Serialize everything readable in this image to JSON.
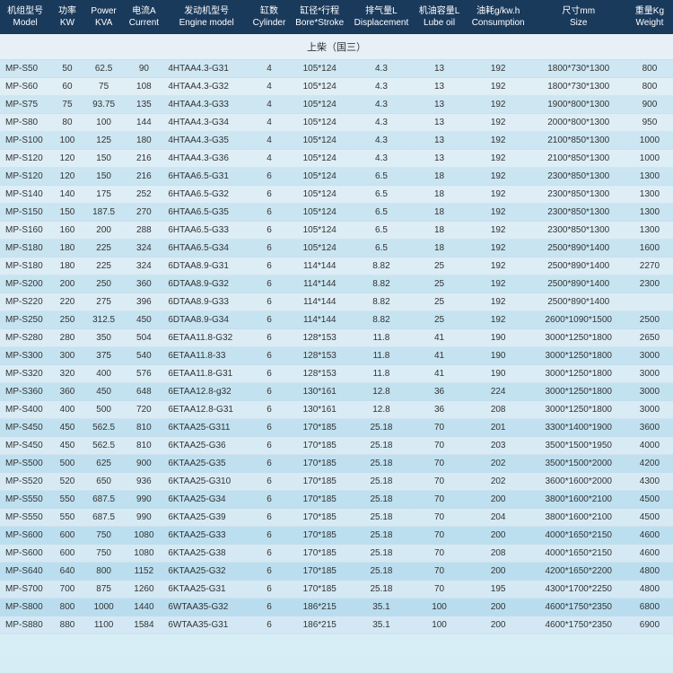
{
  "headers": [
    {
      "zh": "机组型号",
      "en": "Model"
    },
    {
      "zh": "功率",
      "en": "KW"
    },
    {
      "zh": "Power",
      "en": "KVA"
    },
    {
      "zh": "电流A",
      "en": "Current"
    },
    {
      "zh": "发动机型号",
      "en": "Engine model"
    },
    {
      "zh": "缸数",
      "en": "Cylinder"
    },
    {
      "zh": "缸径*行程",
      "en": "Bore*Stroke"
    },
    {
      "zh": "排气量L",
      "en": "Displacement"
    },
    {
      "zh": "机油容量L",
      "en": "Lube oil"
    },
    {
      "zh": "油耗g/kw.h",
      "en": "Consumption"
    },
    {
      "zh": "尺寸mm",
      "en": "Size"
    },
    {
      "zh": "重量Kg",
      "en": "Weight"
    }
  ],
  "section_title": "上柴（国三）",
  "rows": [
    [
      "MP-S50",
      "50",
      "62.5",
      "90",
      "4HTAA4.3-G31",
      "4",
      "105*124",
      "4.3",
      "13",
      "192",
      "1800*730*1300",
      "800"
    ],
    [
      "MP-S60",
      "60",
      "75",
      "108",
      "4HTAA4.3-G32",
      "4",
      "105*124",
      "4.3",
      "13",
      "192",
      "1800*730*1300",
      "800"
    ],
    [
      "MP-S75",
      "75",
      "93.75",
      "135",
      "4HTAA4.3-G33",
      "4",
      "105*124",
      "4.3",
      "13",
      "192",
      "1900*800*1300",
      "900"
    ],
    [
      "MP-S80",
      "80",
      "100",
      "144",
      "4HTAA4.3-G34",
      "4",
      "105*124",
      "4.3",
      "13",
      "192",
      "2000*800*1300",
      "950"
    ],
    [
      "MP-S100",
      "100",
      "125",
      "180",
      "4HTAA4.3-G35",
      "4",
      "105*124",
      "4.3",
      "13",
      "192",
      "2100*850*1300",
      "1000"
    ],
    [
      "MP-S120",
      "120",
      "150",
      "216",
      "4HTAA4.3-G36",
      "4",
      "105*124",
      "4.3",
      "13",
      "192",
      "2100*850*1300",
      "1000"
    ],
    [
      "MP-S120",
      "120",
      "150",
      "216",
      "6HTAA6.5-G31",
      "6",
      "105*124",
      "6.5",
      "18",
      "192",
      "2300*850*1300",
      "1300"
    ],
    [
      "MP-S140",
      "140",
      "175",
      "252",
      "6HTAA6.5-G32",
      "6",
      "105*124",
      "6.5",
      "18",
      "192",
      "2300*850*1300",
      "1300"
    ],
    [
      "MP-S150",
      "150",
      "187.5",
      "270",
      "6HTAA6.5-G35",
      "6",
      "105*124",
      "6.5",
      "18",
      "192",
      "2300*850*1300",
      "1300"
    ],
    [
      "MP-S160",
      "160",
      "200",
      "288",
      "6HTAA6.5-G33",
      "6",
      "105*124",
      "6.5",
      "18",
      "192",
      "2300*850*1300",
      "1300"
    ],
    [
      "MP-S180",
      "180",
      "225",
      "324",
      "6HTAA6.5-G34",
      "6",
      "105*124",
      "6.5",
      "18",
      "192",
      "2500*890*1400",
      "1600"
    ],
    [
      "MP-S180",
      "180",
      "225",
      "324",
      "6DTAA8.9-G31",
      "6",
      "114*144",
      "8.82",
      "25",
      "192",
      "2500*890*1400",
      "2270"
    ],
    [
      "MP-S200",
      "200",
      "250",
      "360",
      "6DTAA8.9-G32",
      "6",
      "114*144",
      "8.82",
      "25",
      "192",
      "2500*890*1400",
      "2300"
    ],
    [
      "MP-S220",
      "220",
      "275",
      "396",
      "6DTAA8.9-G33",
      "6",
      "114*144",
      "8.82",
      "25",
      "192",
      "2500*890*1400",
      ""
    ],
    [
      "MP-S250",
      "250",
      "312.5",
      "450",
      "6DTAA8.9-G34",
      "6",
      "114*144",
      "8.82",
      "25",
      "192",
      "2600*1090*1500",
      "2500"
    ],
    [
      "MP-S280",
      "280",
      "350",
      "504",
      "6ETAA11.8-G32",
      "6",
      "128*153",
      "11.8",
      "41",
      "190",
      "3000*1250*1800",
      "2650"
    ],
    [
      "MP-S300",
      "300",
      "375",
      "540",
      "6ETAA11.8-33",
      "6",
      "128*153",
      "11.8",
      "41",
      "190",
      "3000*1250*1800",
      "3000"
    ],
    [
      "MP-S320",
      "320",
      "400",
      "576",
      "6ETAA11.8-G31",
      "6",
      "128*153",
      "11.8",
      "41",
      "190",
      "3000*1250*1800",
      "3000"
    ],
    [
      "MP-S360",
      "360",
      "450",
      "648",
      "6ETAA12.8-g32",
      "6",
      "130*161",
      "12.8",
      "36",
      "224",
      "3000*1250*1800",
      "3000"
    ],
    [
      "MP-S400",
      "400",
      "500",
      "720",
      "6ETAA12.8-G31",
      "6",
      "130*161",
      "12.8",
      "36",
      "208",
      "3000*1250*1800",
      "3000"
    ],
    [
      "MP-S450",
      "450",
      "562.5",
      "810",
      "6KTAA25-G311",
      "6",
      "170*185",
      "25.18",
      "70",
      "201",
      "3300*1400*1900",
      "3600"
    ],
    [
      "MP-S450",
      "450",
      "562.5",
      "810",
      "6KTAA25-G36",
      "6",
      "170*185",
      "25.18",
      "70",
      "203",
      "3500*1500*1950",
      "4000"
    ],
    [
      "MP-S500",
      "500",
      "625",
      "900",
      "6KTAA25-G35",
      "6",
      "170*185",
      "25.18",
      "70",
      "202",
      "3500*1500*2000",
      "4200"
    ],
    [
      "MP-S520",
      "520",
      "650",
      "936",
      "6KTAA25-G310",
      "6",
      "170*185",
      "25.18",
      "70",
      "202",
      "3600*1600*2000",
      "4300"
    ],
    [
      "MP-S550",
      "550",
      "687.5",
      "990",
      "6KTAA25-G34",
      "6",
      "170*185",
      "25.18",
      "70",
      "200",
      "3800*1600*2100",
      "4500"
    ],
    [
      "MP-S550",
      "550",
      "687.5",
      "990",
      "6KTAA25-G39",
      "6",
      "170*185",
      "25.18",
      "70",
      "204",
      "3800*1600*2100",
      "4500"
    ],
    [
      "MP-S600",
      "600",
      "750",
      "1080",
      "6KTAA25-G33",
      "6",
      "170*185",
      "25.18",
      "70",
      "200",
      "4000*1650*2150",
      "4600"
    ],
    [
      "MP-S600",
      "600",
      "750",
      "1080",
      "6KTAA25-G38",
      "6",
      "170*185",
      "25.18",
      "70",
      "208",
      "4000*1650*2150",
      "4600"
    ],
    [
      "MP-S640",
      "640",
      "800",
      "1152",
      "6KTAA25-G32",
      "6",
      "170*185",
      "25.18",
      "70",
      "200",
      "4200*1650*2200",
      "4800"
    ],
    [
      "MP-S700",
      "700",
      "875",
      "1260",
      "6KTAA25-G31",
      "6",
      "170*185",
      "25.18",
      "70",
      "195",
      "4300*1700*2250",
      "4800"
    ],
    [
      "MP-S800",
      "800",
      "1000",
      "1440",
      "6WTAA35-G32",
      "6",
      "186*215",
      "35.1",
      "100",
      "200",
      "4600*1750*2350",
      "6800"
    ],
    [
      "MP-S880",
      "880",
      "1100",
      "1584",
      "6WTAA35-G31",
      "6",
      "186*215",
      "35.1",
      "100",
      "200",
      "4600*1750*2350",
      "6900"
    ]
  ]
}
